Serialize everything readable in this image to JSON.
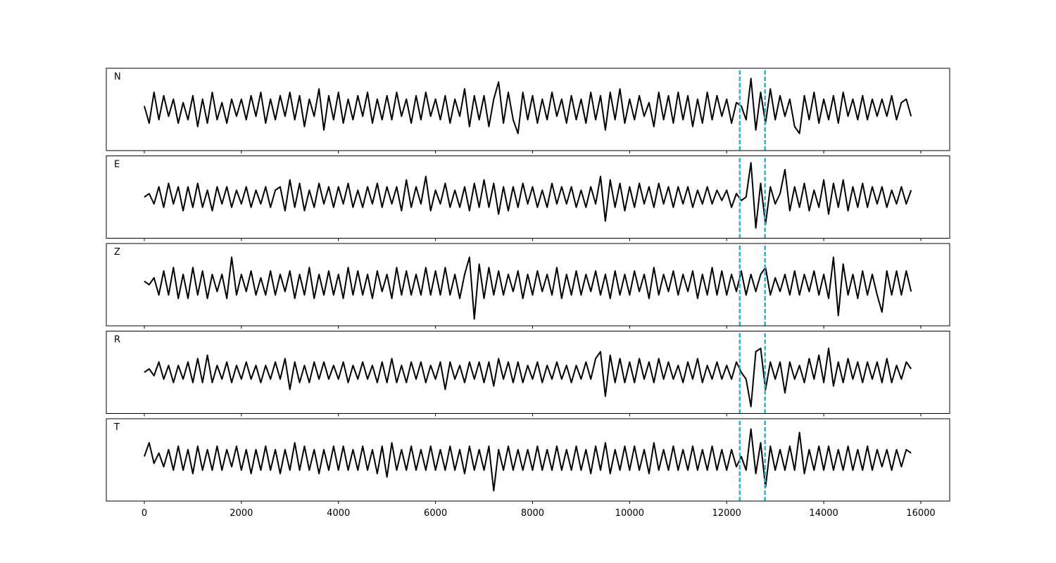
{
  "chart_data": {
    "type": "line",
    "xlim": [
      -783,
      16595
    ],
    "xticks": [
      0,
      2000,
      4000,
      6000,
      8000,
      10000,
      12000,
      14000,
      16000
    ],
    "ylim": [
      -1.2,
      1.2
    ],
    "line_color": "#000000",
    "markers": [
      12270,
      12790
    ],
    "marker_color": "#17becf",
    "x": [
      0,
      100,
      200,
      300,
      400,
      500,
      600,
      700,
      800,
      900,
      1000,
      1100,
      1200,
      1300,
      1400,
      1500,
      1600,
      1700,
      1800,
      1900,
      2000,
      2100,
      2200,
      2300,
      2400,
      2500,
      2600,
      2700,
      2800,
      2900,
      3000,
      3100,
      3200,
      3300,
      3400,
      3500,
      3600,
      3700,
      3800,
      3900,
      4000,
      4100,
      4200,
      4300,
      4400,
      4500,
      4600,
      4700,
      4800,
      4900,
      5000,
      5100,
      5200,
      5300,
      5400,
      5500,
      5600,
      5700,
      5800,
      5900,
      6000,
      6100,
      6200,
      6300,
      6400,
      6500,
      6600,
      6700,
      6800,
      6900,
      7000,
      7100,
      7200,
      7300,
      7400,
      7500,
      7600,
      7700,
      7800,
      7900,
      8000,
      8100,
      8200,
      8300,
      8400,
      8500,
      8600,
      8700,
      8800,
      8900,
      9000,
      9100,
      9200,
      9300,
      9400,
      9500,
      9600,
      9700,
      9800,
      9900,
      10000,
      10100,
      10200,
      10300,
      10400,
      10500,
      10600,
      10700,
      10800,
      10900,
      11000,
      11100,
      11200,
      11300,
      11400,
      11500,
      11600,
      11700,
      11800,
      11900,
      12000,
      12100,
      12200,
      12300,
      12400,
      12500,
      12600,
      12700,
      12800,
      12900,
      13000,
      13100,
      13200,
      13300,
      13400,
      13500,
      13600,
      13700,
      13800,
      13900,
      14000,
      14100,
      14200,
      14300,
      14400,
      14500,
      14600,
      14700,
      14800,
      14900,
      15000,
      15100,
      15200,
      15300,
      15400,
      15500,
      15600,
      15700,
      15800
    ],
    "series": [
      {
        "name": "N",
        "values": [
          0.1,
          -0.4,
          0.5,
          -0.3,
          0.4,
          -0.2,
          0.3,
          -0.4,
          0.2,
          -0.3,
          0.4,
          -0.5,
          0.3,
          -0.4,
          0.5,
          -0.3,
          0.2,
          -0.4,
          0.3,
          -0.2,
          0.3,
          -0.3,
          0.4,
          -0.2,
          0.5,
          -0.4,
          0.3,
          -0.3,
          0.4,
          -0.2,
          0.5,
          -0.3,
          0.4,
          -0.5,
          0.3,
          -0.2,
          0.6,
          -0.6,
          0.4,
          -0.3,
          0.5,
          -0.4,
          0.3,
          -0.3,
          0.4,
          -0.2,
          0.5,
          -0.4,
          0.3,
          -0.3,
          0.4,
          -0.3,
          0.5,
          -0.2,
          0.3,
          -0.4,
          0.4,
          -0.3,
          0.5,
          -0.2,
          0.3,
          -0.3,
          0.4,
          -0.4,
          0.3,
          -0.2,
          0.6,
          -0.5,
          0.4,
          -0.3,
          0.4,
          -0.5,
          0.3,
          0.8,
          -0.4,
          0.5,
          -0.3,
          -0.7,
          0.5,
          -0.3,
          0.4,
          -0.4,
          0.3,
          -0.3,
          0.5,
          -0.2,
          0.3,
          -0.4,
          0.4,
          -0.3,
          0.3,
          -0.4,
          0.5,
          -0.3,
          0.4,
          -0.6,
          0.5,
          -0.3,
          0.6,
          -0.4,
          0.3,
          -0.3,
          0.4,
          -0.2,
          0.2,
          -0.5,
          0.5,
          -0.3,
          0.4,
          -0.4,
          0.5,
          -0.3,
          0.4,
          -0.5,
          0.3,
          -0.4,
          0.5,
          -0.3,
          0.4,
          -0.2,
          0.3,
          -0.4,
          0.2,
          0.1,
          -0.3,
          0.9,
          -0.6,
          0.5,
          -0.4,
          0.6,
          -0.3,
          0.4,
          -0.2,
          0.3,
          -0.5,
          -0.7,
          0.4,
          -0.3,
          0.5,
          -0.4,
          0.3,
          -0.3,
          0.4,
          -0.4,
          0.5,
          -0.2,
          0.3,
          -0.3,
          0.4,
          -0.3,
          0.3,
          -0.2,
          0.3,
          -0.2,
          0.4,
          -0.3,
          0.2,
          0.3,
          -0.2
        ]
      },
      {
        "name": "E",
        "values": [
          0.0,
          0.1,
          -0.2,
          0.3,
          -0.3,
          0.4,
          -0.2,
          0.3,
          -0.4,
          0.3,
          -0.3,
          0.4,
          -0.3,
          0.2,
          -0.4,
          0.3,
          -0.2,
          0.3,
          -0.3,
          0.2,
          -0.2,
          0.3,
          -0.3,
          0.2,
          -0.2,
          0.3,
          -0.3,
          0.2,
          0.3,
          -0.4,
          0.5,
          -0.3,
          0.4,
          -0.4,
          0.2,
          -0.3,
          0.4,
          -0.2,
          0.3,
          -0.3,
          0.3,
          -0.2,
          0.4,
          -0.3,
          0.2,
          -0.3,
          0.3,
          -0.2,
          0.4,
          -0.3,
          0.3,
          -0.2,
          0.3,
          -0.4,
          0.5,
          -0.3,
          0.3,
          -0.2,
          0.6,
          -0.4,
          0.2,
          -0.2,
          0.4,
          -0.3,
          0.2,
          -0.3,
          0.3,
          -0.4,
          0.4,
          -0.3,
          0.5,
          -0.3,
          0.4,
          -0.5,
          0.3,
          -0.4,
          0.3,
          -0.3,
          0.4,
          -0.2,
          0.3,
          -0.3,
          0.2,
          -0.3,
          0.4,
          -0.2,
          0.3,
          -0.2,
          0.3,
          -0.3,
          0.2,
          -0.3,
          0.3,
          -0.2,
          0.6,
          -0.7,
          0.5,
          -0.3,
          0.4,
          -0.4,
          0.3,
          -0.3,
          0.4,
          -0.2,
          0.3,
          -0.3,
          0.4,
          -0.2,
          0.3,
          -0.3,
          0.3,
          -0.2,
          0.3,
          -0.3,
          0.2,
          -0.2,
          0.3,
          -0.2,
          0.2,
          -0.1,
          0.2,
          -0.3,
          0.1,
          -0.1,
          0.0,
          1.0,
          -0.9,
          0.4,
          -0.8,
          0.3,
          -0.2,
          0.1,
          0.8,
          -0.4,
          0.3,
          -0.3,
          0.4,
          -0.4,
          0.2,
          -0.3,
          0.5,
          -0.5,
          0.4,
          -0.3,
          0.5,
          -0.4,
          0.3,
          -0.3,
          0.4,
          -0.3,
          0.3,
          -0.2,
          0.3,
          -0.3,
          0.2,
          -0.2,
          0.3,
          -0.2,
          0.2
        ]
      },
      {
        "name": "Z",
        "values": [
          0.1,
          0.0,
          0.2,
          -0.3,
          0.4,
          -0.3,
          0.5,
          -0.4,
          0.3,
          -0.4,
          0.5,
          -0.3,
          0.4,
          -0.4,
          0.3,
          -0.2,
          0.3,
          -0.4,
          0.8,
          -0.3,
          0.3,
          -0.2,
          0.4,
          -0.3,
          0.2,
          -0.3,
          0.4,
          -0.3,
          0.3,
          -0.2,
          0.4,
          -0.4,
          0.3,
          -0.3,
          0.5,
          -0.4,
          0.3,
          -0.3,
          0.4,
          -0.3,
          0.3,
          -0.4,
          0.5,
          -0.3,
          0.4,
          -0.3,
          0.3,
          -0.4,
          0.4,
          -0.2,
          0.3,
          -0.4,
          0.5,
          -0.3,
          0.4,
          -0.3,
          0.3,
          -0.3,
          0.5,
          -0.3,
          0.4,
          -0.3,
          0.5,
          -0.3,
          0.3,
          -0.4,
          0.3,
          0.8,
          -1.0,
          0.6,
          -0.4,
          0.5,
          -0.3,
          0.4,
          -0.3,
          0.3,
          -0.2,
          0.4,
          -0.4,
          0.3,
          -0.3,
          0.4,
          -0.2,
          0.3,
          -0.3,
          0.5,
          -0.4,
          0.3,
          -0.3,
          0.4,
          -0.3,
          0.3,
          -0.2,
          0.4,
          -0.3,
          0.3,
          -0.4,
          0.4,
          -0.3,
          0.3,
          -0.3,
          0.4,
          -0.2,
          0.3,
          -0.4,
          0.5,
          -0.3,
          0.3,
          -0.2,
          0.4,
          -0.3,
          0.3,
          -0.2,
          0.4,
          -0.4,
          0.3,
          -0.3,
          0.5,
          -0.3,
          0.4,
          -0.3,
          0.3,
          -0.2,
          0.4,
          -0.3,
          0.3,
          -0.2,
          0.3,
          0.5,
          -0.3,
          0.2,
          -0.2,
          0.3,
          -0.3,
          0.4,
          -0.3,
          0.3,
          -0.2,
          0.4,
          -0.3,
          0.3,
          -0.4,
          0.8,
          -0.9,
          0.6,
          -0.3,
          0.3,
          -0.4,
          0.4,
          -0.3,
          0.3,
          -0.3,
          -0.8,
          0.4,
          -0.3,
          0.4,
          -0.3,
          0.4,
          -0.2
        ]
      },
      {
        "name": "R",
        "values": [
          0.0,
          0.1,
          -0.1,
          0.3,
          -0.2,
          0.2,
          -0.3,
          0.2,
          -0.2,
          0.3,
          -0.3,
          0.4,
          -0.3,
          0.5,
          -0.3,
          0.2,
          -0.2,
          0.3,
          -0.3,
          0.2,
          -0.2,
          0.3,
          -0.2,
          0.2,
          -0.3,
          0.2,
          -0.2,
          0.3,
          -0.2,
          0.4,
          -0.5,
          0.3,
          -0.3,
          0.2,
          -0.3,
          0.3,
          -0.2,
          0.3,
          -0.2,
          0.2,
          -0.2,
          0.3,
          -0.3,
          0.2,
          -0.2,
          0.3,
          -0.2,
          0.2,
          -0.3,
          0.3,
          -0.3,
          0.4,
          -0.3,
          0.2,
          -0.3,
          0.3,
          -0.2,
          0.3,
          -0.3,
          0.2,
          -0.2,
          0.3,
          -0.5,
          0.3,
          -0.2,
          0.2,
          -0.3,
          0.3,
          -0.2,
          0.3,
          -0.3,
          0.3,
          -0.4,
          0.4,
          -0.2,
          0.3,
          -0.3,
          0.3,
          -0.3,
          0.2,
          -0.2,
          0.3,
          -0.3,
          0.2,
          -0.2,
          0.3,
          -0.2,
          0.2,
          -0.3,
          0.2,
          -0.2,
          0.3,
          -0.2,
          0.4,
          0.6,
          -0.7,
          0.5,
          -0.3,
          0.4,
          -0.3,
          0.3,
          -0.3,
          0.4,
          -0.2,
          0.3,
          -0.3,
          0.4,
          -0.2,
          0.3,
          -0.2,
          0.2,
          -0.3,
          0.3,
          -0.2,
          0.4,
          -0.3,
          0.2,
          -0.2,
          0.3,
          -0.2,
          0.2,
          -0.2,
          0.3,
          0.0,
          -0.2,
          -1.0,
          0.6,
          0.7,
          -0.5,
          0.3,
          -0.2,
          0.3,
          -0.6,
          0.3,
          -0.2,
          0.2,
          -0.3,
          0.4,
          -0.2,
          0.5,
          -0.3,
          0.7,
          -0.4,
          0.3,
          -0.3,
          0.4,
          -0.2,
          0.3,
          -0.3,
          0.3,
          -0.2,
          0.3,
          -0.3,
          0.4,
          -0.3,
          0.2,
          -0.2,
          0.3,
          0.1
        ]
      },
      {
        "name": "T",
        "values": [
          0.1,
          0.5,
          -0.1,
          0.2,
          -0.2,
          0.3,
          -0.3,
          0.4,
          -0.3,
          0.3,
          -0.4,
          0.4,
          -0.3,
          0.3,
          -0.3,
          0.4,
          -0.3,
          0.3,
          -0.2,
          0.4,
          -0.3,
          0.3,
          -0.4,
          0.3,
          -0.3,
          0.4,
          -0.3,
          0.3,
          -0.4,
          0.3,
          -0.3,
          0.5,
          -0.3,
          0.4,
          -0.3,
          0.3,
          -0.4,
          0.3,
          -0.3,
          0.4,
          -0.3,
          0.4,
          -0.3,
          0.3,
          -0.3,
          0.4,
          -0.3,
          0.3,
          -0.4,
          0.4,
          -0.5,
          0.5,
          -0.3,
          0.3,
          -0.3,
          0.4,
          -0.3,
          0.3,
          -0.3,
          0.4,
          -0.3,
          0.3,
          -0.3,
          0.4,
          -0.3,
          0.3,
          -0.4,
          0.4,
          -0.3,
          0.3,
          -0.3,
          0.4,
          -0.9,
          0.3,
          -0.3,
          0.4,
          -0.3,
          0.3,
          -0.3,
          0.3,
          -0.3,
          0.4,
          -0.3,
          0.3,
          -0.3,
          0.4,
          -0.3,
          0.3,
          -0.3,
          0.4,
          -0.3,
          0.3,
          -0.4,
          0.4,
          -0.3,
          0.5,
          -0.4,
          0.3,
          -0.3,
          0.4,
          -0.3,
          0.4,
          -0.3,
          0.3,
          -0.4,
          0.5,
          -0.3,
          0.3,
          -0.3,
          0.4,
          -0.3,
          0.3,
          -0.3,
          0.4,
          -0.3,
          0.3,
          -0.3,
          0.4,
          -0.3,
          0.3,
          -0.3,
          0.3,
          -0.2,
          0.1,
          -0.3,
          0.9,
          -0.4,
          0.5,
          -0.8,
          0.4,
          -0.3,
          0.3,
          -0.3,
          0.4,
          -0.3,
          0.8,
          -0.4,
          0.3,
          -0.3,
          0.4,
          -0.3,
          0.4,
          -0.3,
          0.3,
          -0.3,
          0.4,
          -0.3,
          0.3,
          -0.3,
          0.4,
          -0.3,
          0.3,
          -0.2,
          0.3,
          -0.3,
          0.3,
          -0.2,
          0.3,
          0.2
        ]
      }
    ]
  }
}
